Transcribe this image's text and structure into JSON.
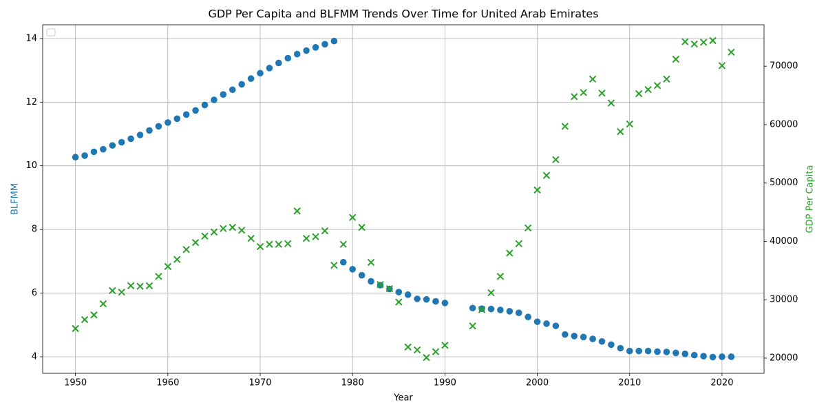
{
  "chart_data": {
    "type": "scatter",
    "title": "GDP Per Capita and BLFMM Trends Over Time for United Arab Emirates",
    "x_label": "Year",
    "y_label": "BLFMM",
    "y2_label": "GDP Per Capita",
    "x": [
      1950,
      1951,
      1952,
      1953,
      1954,
      1955,
      1956,
      1957,
      1958,
      1959,
      1960,
      1961,
      1962,
      1963,
      1964,
      1965,
      1966,
      1967,
      1968,
      1969,
      1970,
      1971,
      1972,
      1973,
      1974,
      1975,
      1976,
      1977,
      1978,
      1979,
      1980,
      1981,
      1982,
      1983,
      1984,
      1985,
      1986,
      1987,
      1988,
      1989,
      1990,
      1991,
      1992,
      1993,
      1994,
      1995,
      1996,
      1997,
      1998,
      1999,
      2000,
      2001,
      2002,
      2003,
      2004,
      2005,
      2006,
      2007,
      2008,
      2009,
      2010,
      2011,
      2012,
      2013,
      2014,
      2015,
      2016,
      2017,
      2018,
      2019,
      2020,
      2021
    ],
    "series": [
      {
        "color": "#1f77b4",
        "marker": "circle",
        "axis": "y",
        "values": [
          10.27,
          10.32,
          10.44,
          10.52,
          10.64,
          10.74,
          10.85,
          10.97,
          11.11,
          11.24,
          11.36,
          11.48,
          11.61,
          11.74,
          11.91,
          12.07,
          12.24,
          12.39,
          12.56,
          12.74,
          12.91,
          13.07,
          13.23,
          13.38,
          13.51,
          13.62,
          13.72,
          13.82,
          13.92,
          6.97,
          6.75,
          6.56,
          6.37,
          6.25,
          6.13,
          6.03,
          5.95,
          5.82,
          5.8,
          5.74,
          5.69,
          null,
          null,
          5.53,
          5.51,
          5.5,
          5.47,
          5.43,
          5.38,
          5.25,
          5.1,
          5.04,
          4.97,
          4.7,
          4.65,
          4.62,
          4.56,
          4.48,
          4.38,
          4.27,
          4.18,
          4.18,
          4.18,
          4.16,
          4.15,
          4.12,
          4.09,
          4.05,
          4.02,
          3.99,
          4.0,
          4.0
        ]
      },
      {
        "color": "#2ca02c",
        "marker": "x",
        "axis": "y2",
        "values": [
          25070,
          26600,
          27400,
          29300,
          31560,
          31300,
          32400,
          32300,
          32400,
          34000,
          35700,
          36900,
          38600,
          39800,
          40900,
          41600,
          42200,
          42400,
          41900,
          40500,
          39100,
          39500,
          39500,
          39600,
          45200,
          40500,
          40800,
          41800,
          35900,
          39500,
          44100,
          42400,
          36400,
          32600,
          31900,
          29600,
          21900,
          21400,
          20100,
          21100,
          22200,
          null,
          null,
          25500,
          28300,
          31200,
          34000,
          38000,
          39600,
          42300,
          48800,
          51300,
          54000,
          59700,
          64800,
          65500,
          67800,
          65400,
          63700,
          58800,
          60100,
          65300,
          66000,
          66700,
          67800,
          71200,
          74200,
          73800,
          74100,
          74400,
          70100,
          72400
        ]
      }
    ],
    "xlim": [
      1946.45,
      2024.55
    ],
    "xticks": [
      1950,
      1960,
      1970,
      1980,
      1990,
      2000,
      2010,
      2020
    ],
    "ylim": [
      3.48,
      14.43
    ],
    "yticks": [
      4,
      6,
      8,
      10,
      12,
      14
    ],
    "y2lim": [
      17400,
      77100
    ],
    "y2ticks": [
      20000,
      30000,
      40000,
      50000,
      60000,
      70000
    ],
    "grid": true,
    "legend": "upper left"
  }
}
